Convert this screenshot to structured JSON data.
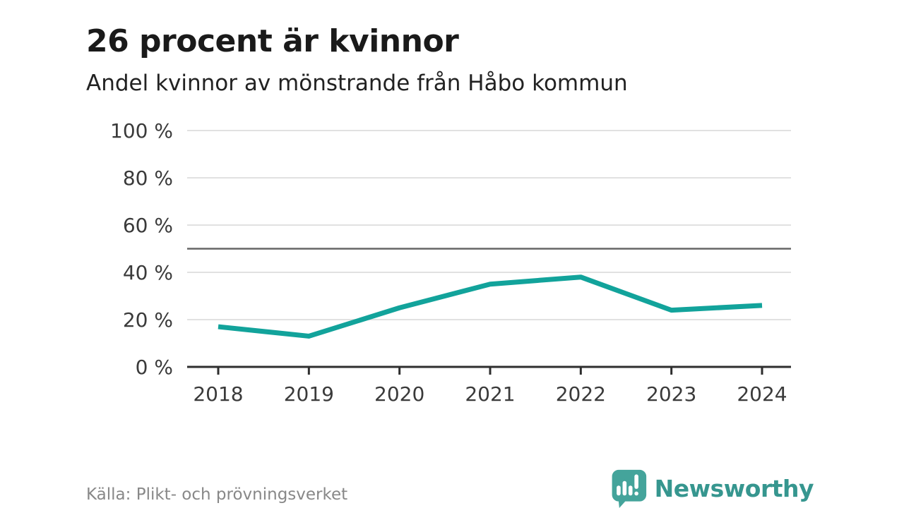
{
  "header": {
    "title": "26 procent är kvinnor",
    "subtitle": "Andel kvinnor av mönstrande från Håbo kommun"
  },
  "chart_data": {
    "type": "line",
    "title": "26 procent är kvinnor",
    "subtitle": "Andel kvinnor av mönstrande från Håbo kommun",
    "categories": [
      "2018",
      "2019",
      "2020",
      "2021",
      "2022",
      "2023",
      "2024"
    ],
    "values": [
      17,
      13,
      25,
      35,
      38,
      24,
      26
    ],
    "series_name": "Andel kvinnor av mönstrande",
    "xlabel": "",
    "ylabel": "",
    "ylim": [
      0,
      100
    ],
    "yticks": [
      0,
      20,
      40,
      60,
      80,
      100
    ],
    "ytick_suffix": " %",
    "reference_line": 50,
    "grid": true,
    "legend": "none",
    "colors": {
      "line": "#12a39b",
      "grid": "#e1e1e1",
      "reference": "#666666",
      "axis": "#2e2e2e",
      "tick_label": "#3a3a3a"
    }
  },
  "footer": {
    "source": "Källa: Plikt- och prövningsverket",
    "brand": "Newsworthy",
    "brand_color": "#36968f"
  }
}
